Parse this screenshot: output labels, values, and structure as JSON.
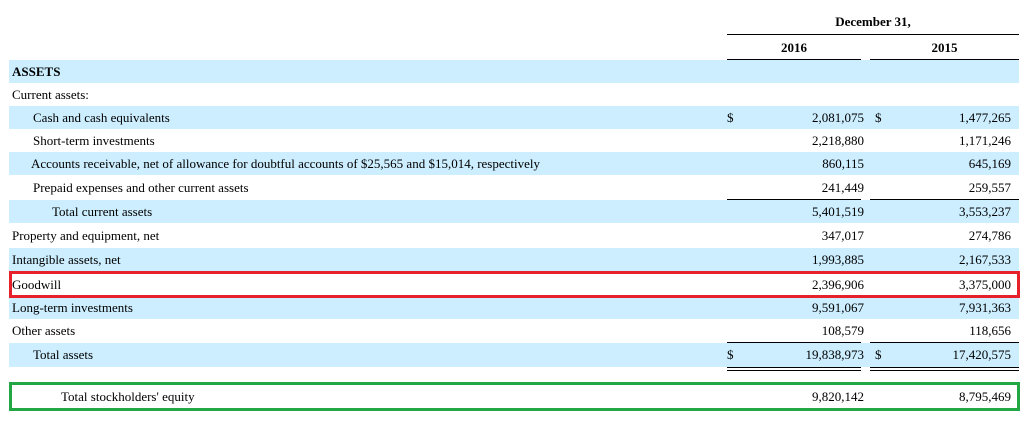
{
  "header": {
    "period": "December 31,",
    "year1": "2016",
    "year2": "2015"
  },
  "rows": [
    {
      "label": "ASSETS",
      "v2016": "",
      "v2015": "",
      "dollar": false
    },
    {
      "label": "Current assets:",
      "v2016": "",
      "v2015": "",
      "dollar": false
    },
    {
      "label": "Cash and cash equivalents",
      "v2016": "2,081,075",
      "v2015": "1,477,265",
      "dollar": true
    },
    {
      "label": "Short-term investments",
      "v2016": "2,218,880",
      "v2015": "1,171,246",
      "dollar": false
    },
    {
      "label": "Accounts receivable, net of allowance for doubtful accounts of $25,565 and $15,014, respectively",
      "v2016": "860,115",
      "v2015": "645,169",
      "dollar": false
    },
    {
      "label": "Prepaid expenses and other current assets",
      "v2016": "241,449",
      "v2015": "259,557",
      "dollar": false
    },
    {
      "label": "Total current assets",
      "v2016": "5,401,519",
      "v2015": "3,553,237",
      "dollar": false
    },
    {
      "label": "Property and equipment, net",
      "v2016": "347,017",
      "v2015": "274,786",
      "dollar": false
    },
    {
      "label": "Intangible assets, net",
      "v2016": "1,993,885",
      "v2015": "2,167,533",
      "dollar": false
    },
    {
      "label": "Goodwill",
      "v2016": "2,396,906",
      "v2015": "3,375,000",
      "dollar": false
    },
    {
      "label": "Long-term investments",
      "v2016": "9,591,067",
      "v2015": "7,931,363",
      "dollar": false
    },
    {
      "label": "Other assets",
      "v2016": "108,579",
      "v2015": "118,656",
      "dollar": false
    },
    {
      "label": "Total assets",
      "v2016": "19,838,973",
      "v2015": "17,420,575",
      "dollar": true
    },
    {
      "label": "Total stockholders' equity",
      "v2016": "9,820,142",
      "v2015": "8,795,469",
      "dollar": false
    }
  ],
  "currency_symbol": "$",
  "highlight_colors": {
    "goodwill_box": "#e8202a",
    "equity_box": "#22a744",
    "row_shade": "#cceeff"
  }
}
